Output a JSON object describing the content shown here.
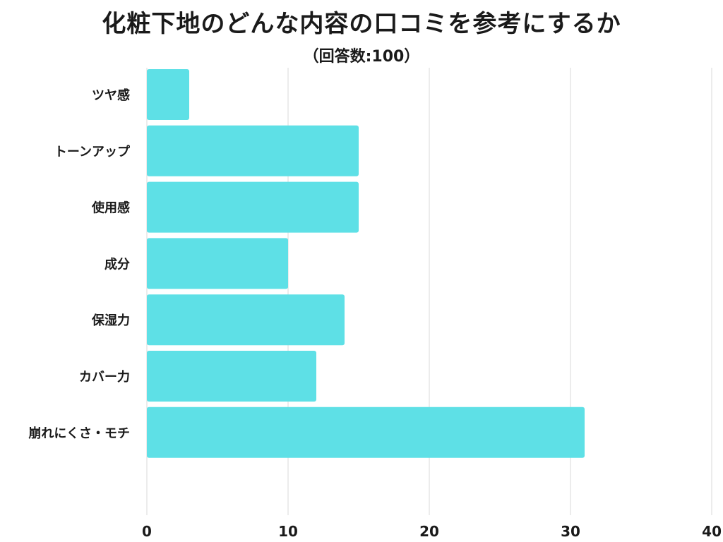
{
  "chart_data": {
    "type": "bar",
    "orientation": "horizontal",
    "title": "化粧下地のどんな内容の口コミを参考にするか",
    "subtitle": "（回答数:100）",
    "categories": [
      "ツヤ感",
      "トーンアップ",
      "使用感",
      "成分",
      "保湿力",
      "カバー力",
      "崩れにくさ・モチ"
    ],
    "values": [
      3,
      15,
      15,
      10,
      14,
      12,
      31
    ],
    "xlim": [
      0,
      40
    ],
    "xticks": [
      0,
      10,
      20,
      30,
      40
    ],
    "xlabel": "",
    "ylabel": "",
    "grid": true,
    "bar_color": "#5ee0e6",
    "grid_color": "#d9d9d9"
  }
}
